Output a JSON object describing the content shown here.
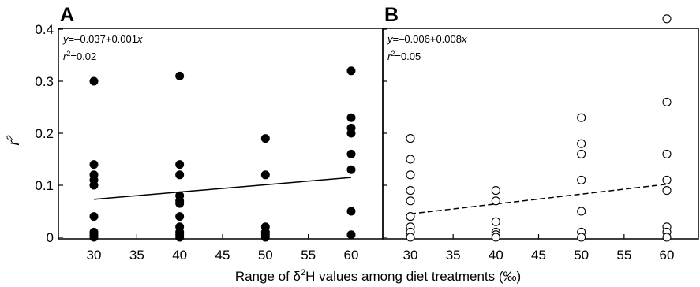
{
  "chart_data": [
    {
      "panel": "A",
      "type": "scatter",
      "marker": "filled-circle",
      "marker_color": "#000000",
      "equation": "y=–0.037+0.001x",
      "r_squared": "r2=0.02",
      "fit_line": {
        "style": "solid",
        "intercept": -0.037,
        "slope": 0.001
      },
      "xlim": [
        25,
        65
      ],
      "ylim": [
        0,
        0.44
      ],
      "points": [
        {
          "x": 30,
          "y": 0.3
        },
        {
          "x": 30,
          "y": 0.14
        },
        {
          "x": 30,
          "y": 0.12
        },
        {
          "x": 30,
          "y": 0.11
        },
        {
          "x": 30,
          "y": 0.1
        },
        {
          "x": 30,
          "y": 0.04
        },
        {
          "x": 30,
          "y": 0.01
        },
        {
          "x": 30,
          "y": 0.005
        },
        {
          "x": 30,
          "y": 0.0
        },
        {
          "x": 40,
          "y": 0.31
        },
        {
          "x": 40,
          "y": 0.14
        },
        {
          "x": 40,
          "y": 0.12
        },
        {
          "x": 40,
          "y": 0.08
        },
        {
          "x": 40,
          "y": 0.07
        },
        {
          "x": 40,
          "y": 0.065
        },
        {
          "x": 40,
          "y": 0.04
        },
        {
          "x": 40,
          "y": 0.02
        },
        {
          "x": 40,
          "y": 0.01
        },
        {
          "x": 40,
          "y": 0.005
        },
        {
          "x": 40,
          "y": 0.0
        },
        {
          "x": 50,
          "y": 0.19
        },
        {
          "x": 50,
          "y": 0.12
        },
        {
          "x": 50,
          "y": 0.02
        },
        {
          "x": 50,
          "y": 0.01
        },
        {
          "x": 50,
          "y": 0.005
        },
        {
          "x": 50,
          "y": 0.0
        },
        {
          "x": 60,
          "y": 0.32
        },
        {
          "x": 60,
          "y": 0.23
        },
        {
          "x": 60,
          "y": 0.21
        },
        {
          "x": 60,
          "y": 0.2
        },
        {
          "x": 60,
          "y": 0.16
        },
        {
          "x": 60,
          "y": 0.13
        },
        {
          "x": 60,
          "y": 0.05
        },
        {
          "x": 60,
          "y": 0.005
        }
      ]
    },
    {
      "panel": "B",
      "type": "scatter",
      "marker": "open-circle",
      "marker_color": "#000000",
      "equation": "y=–0.006+0.008x",
      "r_squared": "r2=0.05",
      "fit_line": {
        "style": "dashed",
        "intercept": -0.006,
        "slope": 0.008
      },
      "xlim": [
        25,
        65
      ],
      "ylim": [
        0,
        0.44
      ],
      "points": [
        {
          "x": 30,
          "y": 0.19
        },
        {
          "x": 30,
          "y": 0.15
        },
        {
          "x": 30,
          "y": 0.12
        },
        {
          "x": 30,
          "y": 0.09
        },
        {
          "x": 30,
          "y": 0.07
        },
        {
          "x": 30,
          "y": 0.04
        },
        {
          "x": 30,
          "y": 0.02
        },
        {
          "x": 30,
          "y": 0.01
        },
        {
          "x": 30,
          "y": 0.0
        },
        {
          "x": 40,
          "y": 0.09
        },
        {
          "x": 40,
          "y": 0.07
        },
        {
          "x": 40,
          "y": 0.03
        },
        {
          "x": 40,
          "y": 0.01
        },
        {
          "x": 40,
          "y": 0.005
        },
        {
          "x": 40,
          "y": 0.0
        },
        {
          "x": 50,
          "y": 0.23
        },
        {
          "x": 50,
          "y": 0.18
        },
        {
          "x": 50,
          "y": 0.16
        },
        {
          "x": 50,
          "y": 0.11
        },
        {
          "x": 50,
          "y": 0.05
        },
        {
          "x": 50,
          "y": 0.01
        },
        {
          "x": 50,
          "y": 0.0
        },
        {
          "x": 60,
          "y": 0.42
        },
        {
          "x": 60,
          "y": 0.26
        },
        {
          "x": 60,
          "y": 0.16
        },
        {
          "x": 60,
          "y": 0.11
        },
        {
          "x": 60,
          "y": 0.09
        },
        {
          "x": 60,
          "y": 0.02
        },
        {
          "x": 60,
          "y": 0.01
        },
        {
          "x": 60,
          "y": 0.0
        }
      ]
    }
  ],
  "axes": {
    "xlabel": "Range of δ2H values among diet treatments (‰)",
    "xlabel_parts": {
      "before": "Range of δ",
      "sup": "2",
      "after": "H values among diet treatments (‰)"
    },
    "ylabel": "r2",
    "ylabel_parts": {
      "base": "r",
      "sup": "2"
    },
    "x_ticks": [
      "30",
      "35",
      "40",
      "45",
      "50",
      "55",
      "60"
    ],
    "y_ticks": [
      "0",
      "0.1",
      "0.2",
      "0.3",
      "0.4"
    ],
    "grid": false
  }
}
